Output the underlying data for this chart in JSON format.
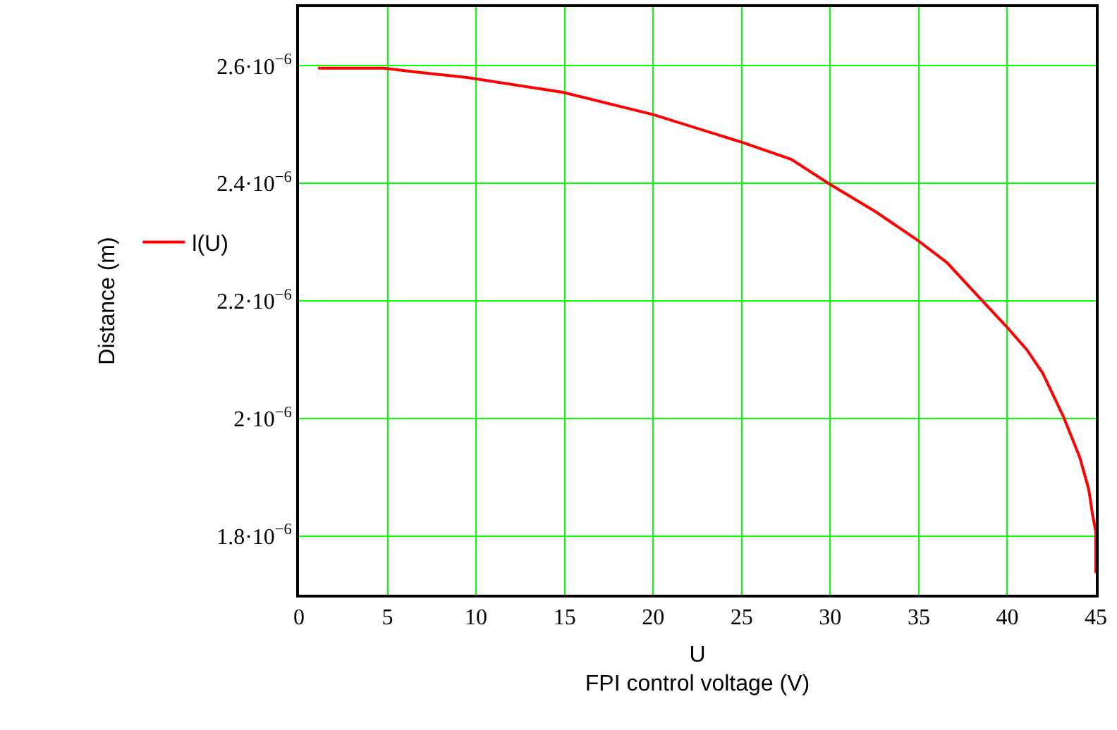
{
  "chart_data": {
    "type": "line",
    "xlabel": "U\nFPI control voltage (V)",
    "ylabel": "Distance (m)",
    "x": [
      1.08,
      4.8,
      6.7,
      9.5,
      14.9,
      20,
      24.9,
      27.8,
      29.9,
      32.6,
      34.9,
      36.6,
      38.1,
      39.9,
      41.1,
      42.0,
      43.2,
      44.1,
      44.6,
      44.8,
      45,
      45
    ],
    "series": [
      {
        "name": "l(U)",
        "color": "#ff0000",
        "values": [
          2.596e-06,
          2.596e-06,
          2.589e-06,
          2.58e-06,
          2.555e-06,
          2.517e-06,
          2.471e-06,
          2.441e-06,
          2.4e-06,
          2.351e-06,
          2.304e-06,
          2.265e-06,
          2.216e-06,
          2.158e-06,
          2.117e-06,
          2.077e-06,
          2.001e-06,
          1.933e-06,
          1.879e-06,
          1.839e-06,
          1.807e-06,
          1.737e-06
        ]
      }
    ],
    "xlim": [
      0,
      45
    ],
    "xticks": [
      0,
      5,
      10,
      15,
      20,
      25,
      30,
      35,
      40,
      45
    ],
    "ylim": [
      1.7e-06,
      2.7e-06
    ],
    "yticks": [
      {
        "value": 1.8e-06,
        "label": "1.8·10$^{−6}$"
      },
      {
        "value": 2e-06,
        "label": "2·10$^{−6}$"
      },
      {
        "value": 2.2e-06,
        "label": "2.2·10$^{−6}$"
      },
      {
        "value": 2.4e-06,
        "label": "2.4·10$^{−6}$"
      },
      {
        "value": 2.6e-06,
        "label": "2.6·10$^{−6}$"
      }
    ],
    "grid": true,
    "legend": "left",
    "marker": "none",
    "line_style": "solid"
  }
}
